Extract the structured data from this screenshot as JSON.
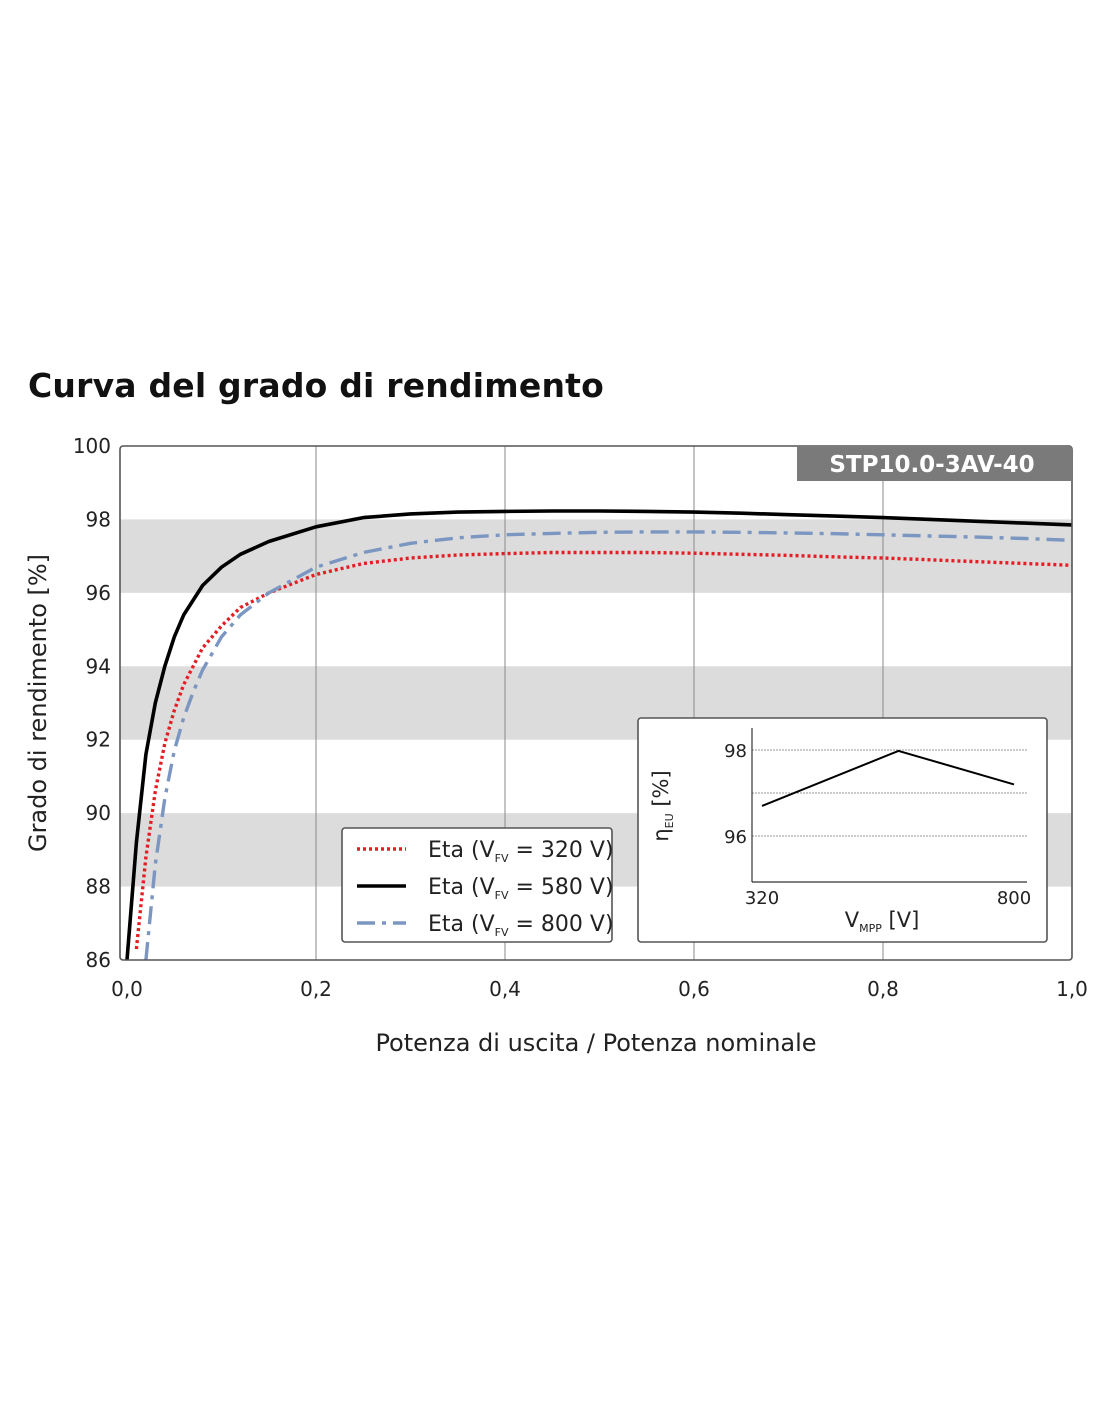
{
  "chart_data": {
    "type": "line",
    "title": "Curva del grado di rendimento",
    "model_badge": "STP10.0-3AV-40",
    "xlabel": "Potenza di uscita / Potenza nominale",
    "ylabel": "Grado di rendimento [%]",
    "xlim": [
      0,
      1
    ],
    "ylim": [
      86,
      100
    ],
    "x_ticks": [
      "0,0",
      "0,2",
      "0,4",
      "0,6",
      "0,8",
      "1,0"
    ],
    "y_ticks": [
      "86",
      "88",
      "90",
      "92",
      "94",
      "96",
      "98",
      "100"
    ],
    "x_tick_values": [
      0,
      0.2,
      0.4,
      0.6,
      0.8,
      1.0
    ],
    "y_tick_values": [
      86,
      88,
      90,
      92,
      94,
      96,
      98,
      100
    ],
    "shaded_bands": [
      [
        88,
        90
      ],
      [
        92,
        94
      ],
      [
        96,
        98
      ]
    ],
    "grid": "vertical",
    "legend_position": "bottom-center",
    "series": [
      {
        "name_prefix": "Eta (V",
        "name_sub": "FV",
        "name_suffix": " = 320 V)",
        "color": "#e31e24",
        "style": "dotted",
        "x": [
          0.01,
          0.02,
          0.03,
          0.04,
          0.05,
          0.06,
          0.08,
          0.1,
          0.12,
          0.15,
          0.2,
          0.25,
          0.3,
          0.35,
          0.4,
          0.45,
          0.5,
          0.55,
          0.6,
          0.65,
          0.7,
          0.75,
          0.8,
          0.85,
          0.9,
          0.95,
          1.0
        ],
        "y": [
          86.3,
          88.8,
          90.6,
          91.9,
          92.8,
          93.5,
          94.5,
          95.1,
          95.6,
          96.0,
          96.5,
          96.8,
          96.95,
          97.03,
          97.07,
          97.1,
          97.1,
          97.1,
          97.08,
          97.05,
          97.02,
          96.98,
          96.95,
          96.9,
          96.85,
          96.8,
          96.75
        ]
      },
      {
        "name_prefix": "Eta (V",
        "name_sub": "FV",
        "name_suffix": " = 580 V)",
        "color": "#000000",
        "style": "solid",
        "x": [
          0.0,
          0.01,
          0.02,
          0.03,
          0.04,
          0.05,
          0.06,
          0.08,
          0.1,
          0.12,
          0.15,
          0.2,
          0.25,
          0.3,
          0.35,
          0.4,
          0.45,
          0.5,
          0.55,
          0.6,
          0.65,
          0.7,
          0.75,
          0.8,
          0.85,
          0.9,
          0.95,
          1.0
        ],
        "y": [
          86.0,
          89.2,
          91.6,
          93.0,
          94.0,
          94.8,
          95.4,
          96.2,
          96.7,
          97.05,
          97.4,
          97.8,
          98.05,
          98.15,
          98.2,
          98.22,
          98.23,
          98.23,
          98.22,
          98.2,
          98.17,
          98.13,
          98.09,
          98.05,
          98.0,
          97.95,
          97.9,
          97.85
        ]
      },
      {
        "name_prefix": "Eta (V",
        "name_sub": "FV",
        "name_suffix": " = 800 V)",
        "color": "#7b96c0",
        "style": "dashdot",
        "x": [
          0.02,
          0.03,
          0.04,
          0.05,
          0.06,
          0.07,
          0.08,
          0.1,
          0.12,
          0.15,
          0.2,
          0.25,
          0.3,
          0.35,
          0.4,
          0.45,
          0.5,
          0.55,
          0.6,
          0.65,
          0.7,
          0.75,
          0.8,
          0.85,
          0.9,
          0.95,
          1.0
        ],
        "y": [
          86.0,
          88.6,
          90.4,
          91.7,
          92.6,
          93.3,
          93.9,
          94.8,
          95.4,
          96.0,
          96.7,
          97.1,
          97.35,
          97.5,
          97.58,
          97.62,
          97.65,
          97.66,
          97.66,
          97.65,
          97.63,
          97.61,
          97.58,
          97.55,
          97.52,
          97.48,
          97.43
        ]
      }
    ],
    "inset": {
      "type": "line",
      "xlabel_main": "V",
      "xlabel_sub": "MPP",
      "xlabel_suffix": " [V]",
      "ylabel_main": "η",
      "ylabel_sub": "EU",
      "ylabel_suffix": " [%]",
      "x_ticks": [
        "320",
        "800"
      ],
      "x_tick_values": [
        320,
        800
      ],
      "y_ticks": [
        "96",
        "98"
      ],
      "y_tick_values": [
        96,
        98
      ],
      "xlim": [
        305,
        820
      ],
      "ylim": [
        95.0,
        98.3
      ],
      "grid_y": [
        96,
        97,
        98
      ],
      "color": "#000000",
      "x": [
        320,
        580,
        800
      ],
      "y": [
        96.7,
        97.98,
        97.2
      ]
    }
  }
}
